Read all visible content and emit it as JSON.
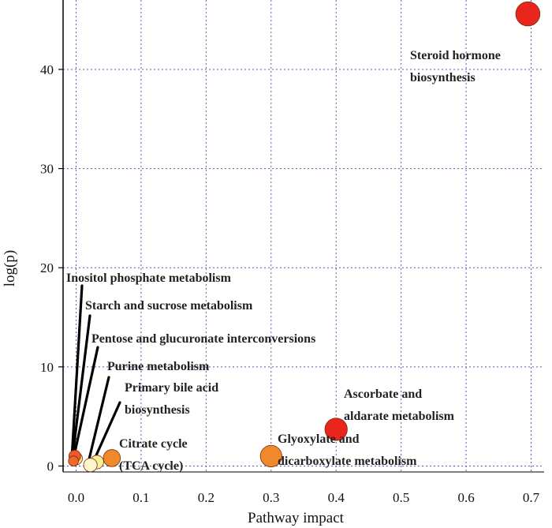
{
  "chart_data": {
    "type": "scatter",
    "title": "",
    "xlabel": "Pathway impact",
    "ylabel": "log(p)",
    "xlim": [
      -0.02,
      0.72
    ],
    "ylim": [
      -0.6,
      47
    ],
    "x_ticks": [
      "0.0",
      "0.1",
      "0.2",
      "0.3",
      "0.4",
      "0.5",
      "0.6",
      "0.7"
    ],
    "x_tick_values": [
      0.0,
      0.1,
      0.2,
      0.3,
      0.4,
      0.5,
      0.6,
      0.7
    ],
    "y_ticks": [
      "0",
      "10",
      "20",
      "30",
      "40"
    ],
    "y_tick_values": [
      0,
      10,
      20,
      30,
      40
    ],
    "grid": true,
    "points": [
      {
        "name": "Steroid hormone biosynthesis",
        "x": 0.695,
        "y": 45.6,
        "size": 2.2,
        "color": "#e8261c"
      },
      {
        "name": "Ascorbate and aldarate metabolism",
        "x": 0.4,
        "y": 3.7,
        "size": 2.0,
        "color": "#e8261c"
      },
      {
        "name": "Glyoxylate and dicarboxylate metabolism",
        "x": 0.3,
        "y": 1.0,
        "size": 1.9,
        "color": "#f0892a"
      },
      {
        "name": "Citrate cycle (TCA cycle)",
        "x": 0.055,
        "y": 0.8,
        "size": 1.4,
        "color": "#f0892a"
      },
      {
        "name": "Primary bile acid biosynthesis",
        "x": 0.032,
        "y": 0.4,
        "size": 1.0,
        "color": "#f7ee98"
      },
      {
        "name": "Purine metabolism",
        "x": 0.022,
        "y": 0.1,
        "size": 1.0,
        "color": "#fbf6cc"
      },
      {
        "name": "Pentose and glucuronate interconversions",
        "x": 0.0,
        "y": 0.75,
        "size": 0.9,
        "color": "#f7e47a"
      },
      {
        "name": "Starch and sucrose metabolism",
        "x": -0.002,
        "y": 1.0,
        "size": 0.8,
        "color": "#f05a28"
      },
      {
        "name": "Inositol phosphate metabolism",
        "x": -0.004,
        "y": 0.5,
        "size": 0.6,
        "color": "#ef6a2a"
      }
    ],
    "annotations": [
      {
        "lines": [
          "Steroid hormone",
          "biosynthesis"
        ],
        "target": 0,
        "leader": false
      },
      {
        "lines": [
          "Ascorbate and",
          "aldarate metabolism"
        ],
        "target": 1,
        "leader": false
      },
      {
        "lines": [
          "Glyoxylate and",
          "dicarboxylate metabolism"
        ],
        "target": 2,
        "leader": false
      },
      {
        "lines": [
          "Citrate cycle",
          "(TCA cycle)"
        ],
        "target": 3,
        "leader": false
      },
      {
        "lines": [
          "Primary bile acid",
          "biosynthesis"
        ],
        "target": 4,
        "leader": true
      },
      {
        "lines": [
          "Purine metabolism"
        ],
        "target": 5,
        "leader": true
      },
      {
        "lines": [
          "Pentose and glucuronate interconversions"
        ],
        "target": 6,
        "leader": true
      },
      {
        "lines": [
          "Starch and sucrose metabolism"
        ],
        "target": 7,
        "leader": true
      },
      {
        "lines": [
          "Inositol phosphate metabolism"
        ],
        "target": 8,
        "leader": true
      }
    ]
  }
}
